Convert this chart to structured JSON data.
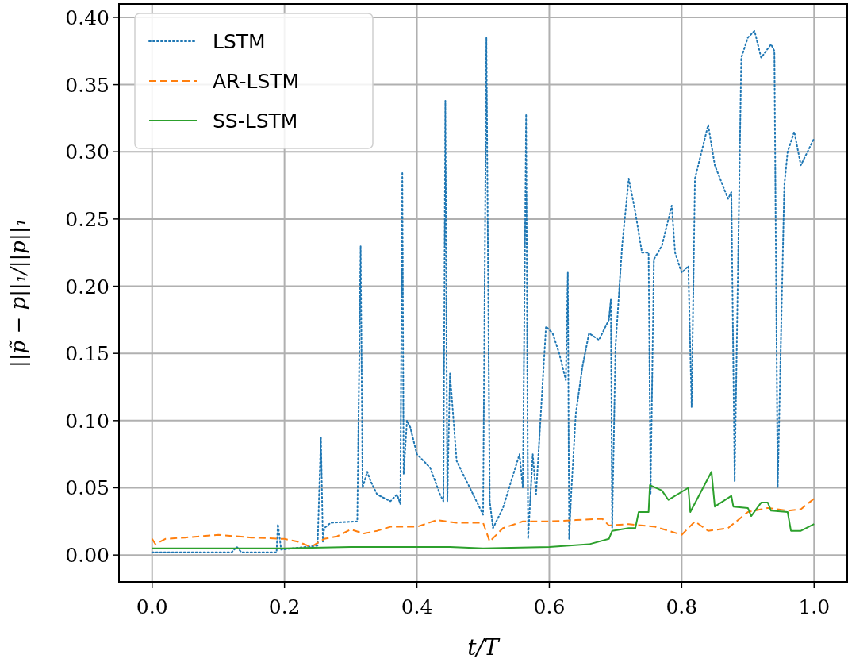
{
  "chart_data": {
    "type": "line",
    "xlabel": "t/T",
    "ylabel": "||p̃ − p||₁/||p||₁",
    "xlim": [
      -0.05,
      1.05
    ],
    "ylim": [
      -0.02,
      0.41
    ],
    "xticks": [
      {
        "value": 0,
        "label": "0.0"
      },
      {
        "value": 0.2,
        "label": "0.2"
      },
      {
        "value": 0.4,
        "label": "0.4"
      },
      {
        "value": 0.6,
        "label": "0.6"
      },
      {
        "value": 0.8,
        "label": "0.8"
      },
      {
        "value": 1,
        "label": "1.0"
      }
    ],
    "yticks": [
      {
        "value": 0,
        "label": "0.00"
      },
      {
        "value": 0.05,
        "label": "0.05"
      },
      {
        "value": 0.1,
        "label": "0.10"
      },
      {
        "value": 0.15,
        "label": "0.15"
      },
      {
        "value": 0.2,
        "label": "0.20"
      },
      {
        "value": 0.25,
        "label": "0.25"
      },
      {
        "value": 0.3,
        "label": "0.30"
      },
      {
        "value": 0.35,
        "label": "0.35"
      },
      {
        "value": 0.4,
        "label": "0.40"
      }
    ],
    "grid": true,
    "legend": "top left",
    "marker": "none",
    "series": [
      {
        "name": "LSTM",
        "color": "#1f77b4",
        "line_style": "dotted",
        "x": [
          0,
          0.12,
          0.128,
          0.135,
          0.188,
          0.19,
          0.195,
          0.25,
          0.255,
          0.258,
          0.26,
          0.27,
          0.31,
          0.315,
          0.318,
          0.325,
          0.33,
          0.34,
          0.36,
          0.37,
          0.375,
          0.378,
          0.38,
          0.385,
          0.39,
          0.4,
          0.42,
          0.435,
          0.44,
          0.443,
          0.446,
          0.45,
          0.46,
          0.48,
          0.5,
          0.505,
          0.51,
          0.515,
          0.53,
          0.555,
          0.56,
          0.565,
          0.568,
          0.575,
          0.58,
          0.595,
          0.605,
          0.615,
          0.625,
          0.628,
          0.63,
          0.633,
          0.64,
          0.65,
          0.66,
          0.675,
          0.69,
          0.693,
          0.695,
          0.7,
          0.71,
          0.72,
          0.73,
          0.74,
          0.75,
          0.753,
          0.758,
          0.77,
          0.785,
          0.79,
          0.8,
          0.81,
          0.815,
          0.82,
          0.83,
          0.84,
          0.85,
          0.87,
          0.875,
          0.88,
          0.89,
          0.9,
          0.91,
          0.92,
          0.935,
          0.94,
          0.945,
          0.955,
          0.96,
          0.97,
          0.98,
          1.0
        ],
        "values": [
          0.002,
          0.002,
          0.006,
          0.002,
          0.002,
          0.023,
          0.004,
          0.007,
          0.088,
          0.01,
          0.02,
          0.024,
          0.025,
          0.23,
          0.05,
          0.062,
          0.055,
          0.045,
          0.04,
          0.045,
          0.038,
          0.285,
          0.06,
          0.1,
          0.095,
          0.075,
          0.065,
          0.045,
          0.04,
          0.338,
          0.04,
          0.135,
          0.07,
          0.05,
          0.03,
          0.385,
          0.04,
          0.02,
          0.035,
          0.075,
          0.05,
          0.328,
          0.012,
          0.075,
          0.045,
          0.17,
          0.165,
          0.15,
          0.13,
          0.21,
          0.012,
          0.045,
          0.105,
          0.14,
          0.165,
          0.16,
          0.175,
          0.19,
          0.02,
          0.155,
          0.23,
          0.28,
          0.255,
          0.225,
          0.225,
          0.045,
          0.22,
          0.23,
          0.26,
          0.225,
          0.21,
          0.215,
          0.11,
          0.28,
          0.3,
          0.32,
          0.29,
          0.265,
          0.27,
          0.055,
          0.37,
          0.385,
          0.39,
          0.37,
          0.38,
          0.375,
          0.05,
          0.275,
          0.3,
          0.315,
          0.29,
          0.31
        ]
      },
      {
        "name": "AR-LSTM",
        "color": "#ff7f0e",
        "line_style": "dashed",
        "x": [
          0,
          0.005,
          0.02,
          0.05,
          0.1,
          0.15,
          0.2,
          0.22,
          0.24,
          0.26,
          0.28,
          0.3,
          0.32,
          0.34,
          0.36,
          0.4,
          0.43,
          0.46,
          0.5,
          0.51,
          0.53,
          0.56,
          0.6,
          0.64,
          0.68,
          0.69,
          0.72,
          0.76,
          0.8,
          0.82,
          0.84,
          0.87,
          0.9,
          0.93,
          0.96,
          0.98,
          1.0
        ],
        "values": [
          0.012,
          0.008,
          0.012,
          0.013,
          0.015,
          0.013,
          0.012,
          0.01,
          0.006,
          0.012,
          0.014,
          0.019,
          0.016,
          0.018,
          0.021,
          0.021,
          0.026,
          0.024,
          0.024,
          0.01,
          0.02,
          0.025,
          0.025,
          0.026,
          0.027,
          0.022,
          0.023,
          0.021,
          0.015,
          0.025,
          0.018,
          0.02,
          0.032,
          0.035,
          0.033,
          0.034,
          0.042
        ]
      },
      {
        "name": "SS-LSTM",
        "color": "#2ca02c",
        "line_style": "solid",
        "x": [
          0,
          0.2,
          0.3,
          0.45,
          0.5,
          0.6,
          0.66,
          0.69,
          0.695,
          0.72,
          0.73,
          0.735,
          0.75,
          0.752,
          0.77,
          0.78,
          0.81,
          0.813,
          0.845,
          0.85,
          0.875,
          0.878,
          0.9,
          0.905,
          0.92,
          0.93,
          0.935,
          0.96,
          0.965,
          0.98,
          1.0
        ],
        "values": [
          0.005,
          0.005,
          0.006,
          0.006,
          0.005,
          0.006,
          0.008,
          0.012,
          0.018,
          0.02,
          0.02,
          0.032,
          0.032,
          0.052,
          0.048,
          0.041,
          0.05,
          0.032,
          0.062,
          0.036,
          0.044,
          0.036,
          0.035,
          0.029,
          0.039,
          0.039,
          0.033,
          0.032,
          0.018,
          0.018,
          0.023
        ]
      }
    ]
  }
}
